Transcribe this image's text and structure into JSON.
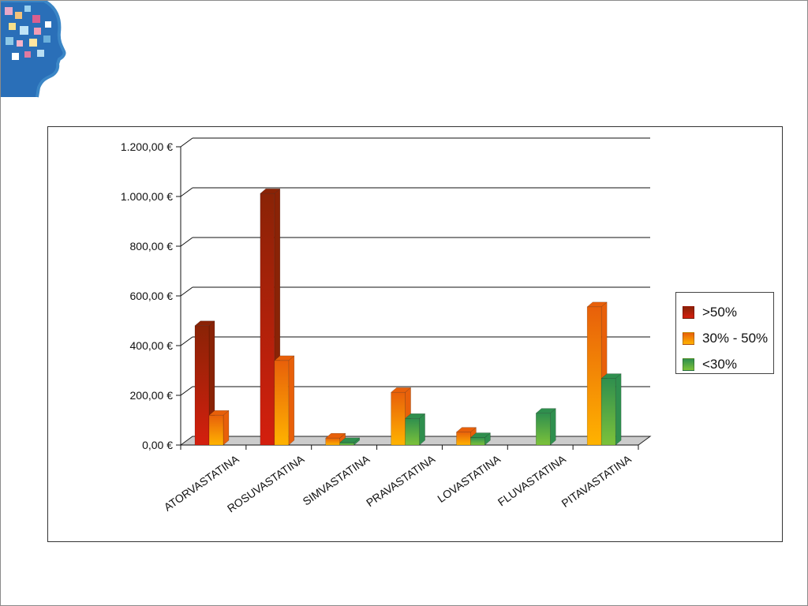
{
  "chart_data": {
    "type": "bar",
    "categories": [
      "ATORVASTATINA",
      "ROSUVASTATINA",
      "SIMVASTATINA",
      "PRAVASTATINA",
      "LOVASTATINA",
      "FLUVASTATINA",
      "PITAVASTATINA"
    ],
    "series": [
      {
        "name": ">50%",
        "values": [
          480,
          1012,
          0,
          0,
          0,
          0,
          0
        ],
        "color": "#d41f0e",
        "color_top": "#8a2306"
      },
      {
        "name": "30% - 50%",
        "values": [
          120,
          340,
          28,
          212,
          52,
          0,
          556
        ],
        "color": "#ffb300",
        "color_top": "#e8600a"
      },
      {
        "name": "<30%",
        "values": [
          0,
          0,
          10,
          107,
          30,
          128,
          268
        ],
        "color": "#7cc23a",
        "color_top": "#2f8f4e"
      }
    ],
    "yticks": [
      "0,00 €",
      "200,00 €",
      "400,00 €",
      "600,00 €",
      "800,00 €",
      "1.000,00 €",
      "1.200,00 €"
    ],
    "ylim": [
      0,
      1200
    ],
    "title": "",
    "xlabel": "",
    "ylabel": "",
    "grid": true,
    "legend_position": "right"
  }
}
